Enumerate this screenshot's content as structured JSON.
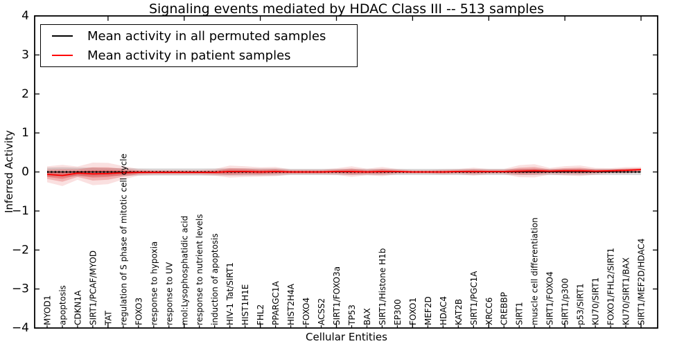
{
  "chart_data": {
    "type": "line",
    "title": "Signaling events mediated by HDAC Class III -- 513 samples",
    "xlabel": "Cellular Entities",
    "ylabel": "Inferred Activity",
    "ylim": [
      -4,
      4
    ],
    "yticks": [
      4,
      3,
      2,
      1,
      0,
      -1,
      -2,
      -3,
      -4
    ],
    "grid": false,
    "legend_position": "upper left",
    "categories": [
      "MYOD1",
      "apoptosis",
      "CDKN1A",
      "SIRT1/PCAF/MYOD",
      "TAT",
      "regulation of S phase of mitotic cell cycle",
      "FOXO3",
      "response to hypoxia",
      "response to UV",
      "mol:Lysophosphatidic acid",
      "response to nutrient levels",
      "induction of apoptosis",
      "HIV-1 Tat/SIRT1",
      "HIST1H1E",
      "FHL2",
      "PPARGC1A",
      "HIST2H4A",
      "FOXO4",
      "ACSS2",
      "SIRT1/FOXO3a",
      "TP53",
      "BAX",
      "SIRT1/Histone H1b",
      "EP300",
      "FOXO1",
      "MEF2D",
      "HDAC4",
      "KAT2B",
      "SIRT1/PGC1A",
      "XRCC6",
      "CREBBP",
      "SIRT1",
      "muscle cell differentiation",
      "SIRT1/FOXO4",
      "SIRT1/p300",
      "p53/SIRT1",
      "KU70/SIRT1",
      "FOXO1/FHL2/SIRT1",
      "KU70/SIRT1/BAX",
      "SIRT1/MEF2D/HDAC4"
    ],
    "series": [
      {
        "name": "Mean activity in all permuted samples",
        "color": "#000000",
        "band_color": "#999999",
        "values": [
          0,
          0,
          0,
          0,
          0,
          0,
          0,
          0,
          0,
          0,
          0,
          0,
          0,
          0,
          0,
          0,
          0,
          0,
          0,
          0,
          0,
          0,
          0,
          0,
          0,
          0,
          0,
          0,
          0,
          0,
          0,
          0,
          0,
          0,
          0,
          0,
          0,
          0,
          0,
          0
        ],
        "band_halfwidth": [
          0.11,
          0.12,
          0.11,
          0.11,
          0.1,
          0.1,
          0.09,
          0.09,
          0.09,
          0.09,
          0.09,
          0.09,
          0.09,
          0.09,
          0.09,
          0.09,
          0.08,
          0.08,
          0.08,
          0.08,
          0.08,
          0.08,
          0.08,
          0.08,
          0.08,
          0.08,
          0.08,
          0.08,
          0.08,
          0.08,
          0.08,
          0.08,
          0.08,
          0.08,
          0.08,
          0.08,
          0.08,
          0.08,
          0.08,
          0.08
        ]
      },
      {
        "name": "Mean activity in patient samples",
        "color": "#ff0000",
        "band_color": "#dd2222",
        "values": [
          -0.06,
          -0.09,
          -0.03,
          -0.05,
          -0.04,
          -0.02,
          -0.01,
          -0.01,
          -0.01,
          -0.01,
          -0.01,
          -0.01,
          0.01,
          0.01,
          0,
          0.01,
          0,
          0,
          0,
          0.01,
          0.01,
          0,
          0.01,
          0.01,
          0,
          0,
          0,
          0.01,
          0.01,
          0.01,
          0.01,
          0.02,
          0.03,
          0.02,
          0.03,
          0.03,
          0.02,
          0.03,
          0.04,
          0.06
        ],
        "band_halfwidth": [
          0.12,
          0.16,
          0.1,
          0.17,
          0.16,
          0.1,
          0.05,
          0.04,
          0.04,
          0.04,
          0.04,
          0.05,
          0.09,
          0.08,
          0.07,
          0.07,
          0.04,
          0.04,
          0.04,
          0.05,
          0.08,
          0.05,
          0.07,
          0.04,
          0.03,
          0.03,
          0.04,
          0.04,
          0.06,
          0.04,
          0.04,
          0.09,
          0.1,
          0.05,
          0.07,
          0.08,
          0.05,
          0.04,
          0.05,
          0.04
        ]
      }
    ]
  },
  "colors": {
    "frame": "#000000",
    "background": "#ffffff",
    "tick_label": "#000000"
  }
}
